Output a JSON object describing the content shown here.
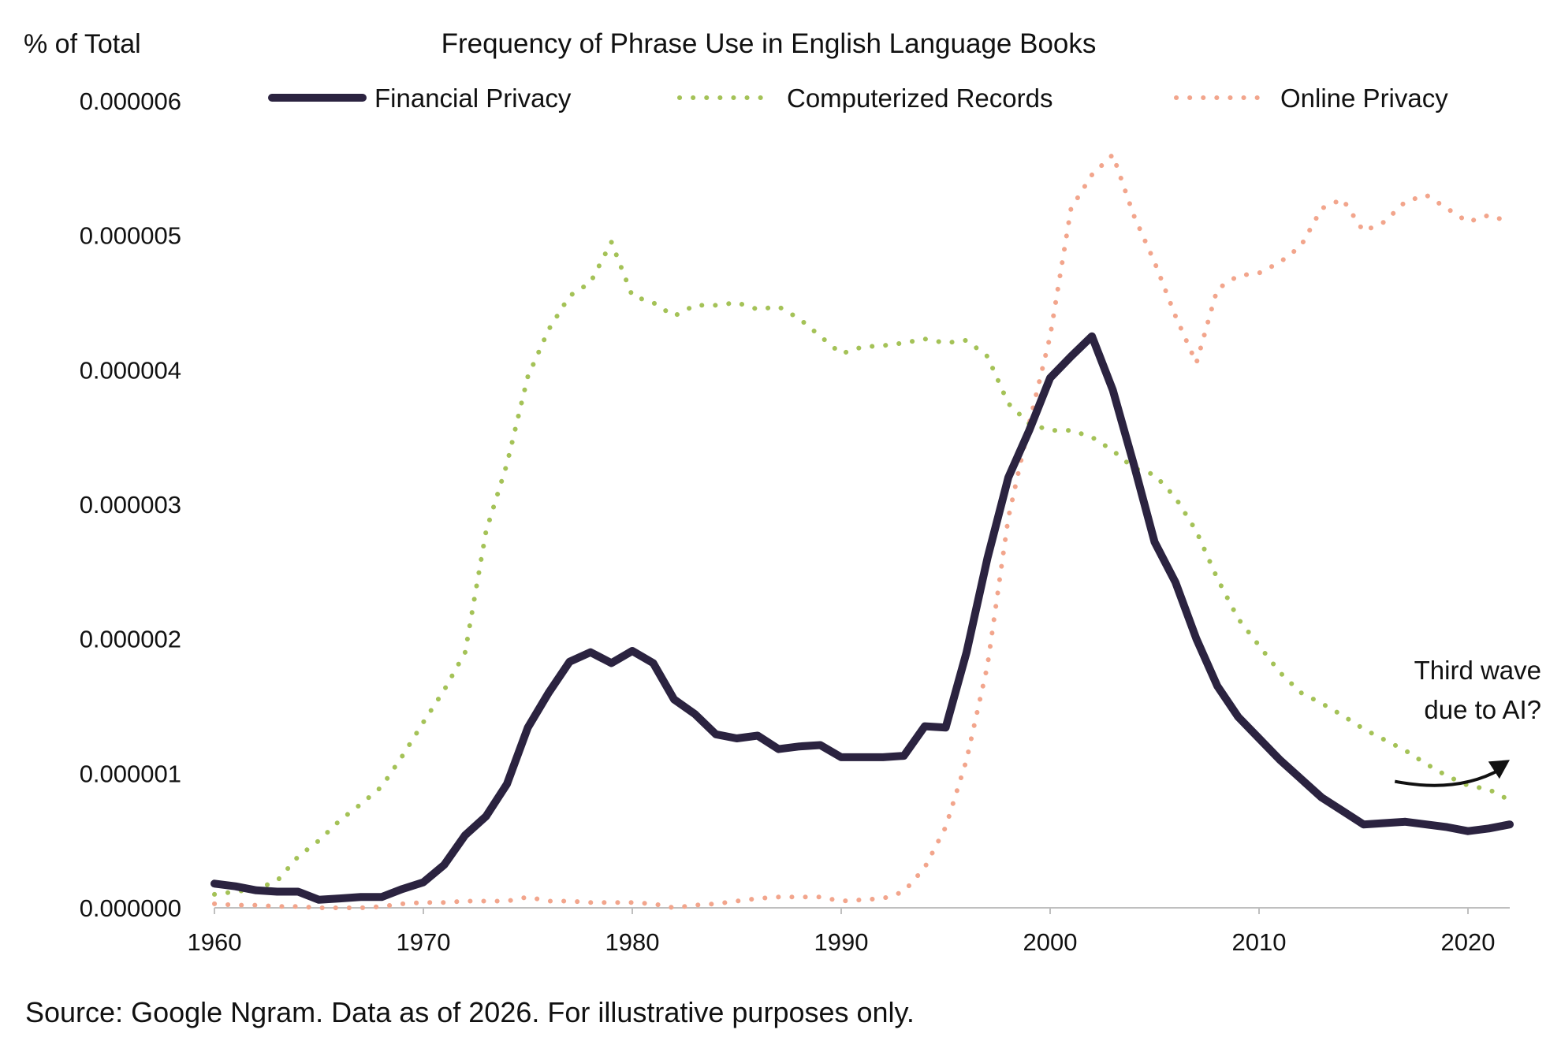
{
  "chart_data": {
    "type": "line",
    "title": "Frequency of Phrase Use in English Language Books",
    "ylabel": "% of Total",
    "xlabel": "",
    "xlim": [
      1960,
      2022
    ],
    "ylim": [
      0,
      6e-06
    ],
    "x_ticks": [
      "1960",
      "1970",
      "1980",
      "1990",
      "2000",
      "2010",
      "2020"
    ],
    "y_ticks": [
      "0.000000",
      "0.000001",
      "0.000002",
      "0.000003",
      "0.000004",
      "0.000005",
      "0.000006"
    ],
    "grid": false,
    "legend_position": "top",
    "x": [
      1960,
      1961,
      1962,
      1963,
      1964,
      1965,
      1966,
      1967,
      1968,
      1969,
      1970,
      1971,
      1972,
      1973,
      1974,
      1975,
      1976,
      1977,
      1978,
      1979,
      1980,
      1981,
      1982,
      1983,
      1984,
      1985,
      1986,
      1987,
      1988,
      1989,
      1990,
      1991,
      1992,
      1993,
      1994,
      1995,
      1996,
      1997,
      1998,
      1999,
      2000,
      2001,
      2002,
      2003,
      2004,
      2005,
      2006,
      2007,
      2008,
      2009,
      2010,
      2011,
      2012,
      2013,
      2014,
      2015,
      2016,
      2017,
      2018,
      2019,
      2020,
      2021,
      2022
    ],
    "series": [
      {
        "name": "Financial Privacy",
        "color": "#2b2340",
        "style": "solid",
        "values": [
          1.8e-07,
          1.6e-07,
          1.3e-07,
          1.2e-07,
          1.2e-07,
          6e-08,
          7e-08,
          8e-08,
          8e-08,
          1.4e-07,
          1.9e-07,
          3.2e-07,
          5.4e-07,
          6.8e-07,
          9.2e-07,
          1.34e-06,
          1.6e-06,
          1.83e-06,
          1.9e-06,
          1.82e-06,
          1.91e-06,
          1.82e-06,
          1.55e-06,
          1.44e-06,
          1.29e-06,
          1.26e-06,
          1.28e-06,
          1.18e-06,
          1.2e-06,
          1.21e-06,
          1.12e-06,
          1.12e-06,
          1.12e-06,
          1.13e-06,
          1.35e-06,
          1.34e-06,
          1.9e-06,
          2.6e-06,
          3.2e-06,
          3.55e-06,
          3.94e-06,
          4.1e-06,
          4.25e-06,
          3.85e-06,
          3.3e-06,
          2.72e-06,
          2.42e-06,
          2e-06,
          1.65e-06,
          1.42e-06,
          1.26e-06,
          1.1e-06,
          9.6e-07,
          8.2e-07,
          7.2e-07,
          6.2e-07,
          6.3e-07,
          6.4e-07,
          6.2e-07,
          6e-07,
          5.7e-07,
          5.9e-07,
          6.2e-07
        ]
      },
      {
        "name": "Computerized Records",
        "color": "#a4c257",
        "style": "dotted",
        "values": [
          1e-07,
          1.2e-07,
          1.4e-07,
          2e-07,
          3.8e-07,
          5e-07,
          6.5e-07,
          7.7e-07,
          9e-07,
          1.13e-06,
          1.38e-06,
          1.62e-06,
          1.9e-06,
          2.8e-06,
          3.3e-06,
          3.95e-06,
          4.3e-06,
          4.55e-06,
          4.65e-06,
          4.95e-06,
          4.55e-06,
          4.5e-06,
          4.4e-06,
          4.48e-06,
          4.48e-06,
          4.5e-06,
          4.45e-06,
          4.47e-06,
          4.38e-06,
          4.25e-06,
          4.12e-06,
          4.17e-06,
          4.18e-06,
          4.2e-06,
          4.23e-06,
          4.2e-06,
          4.22e-06,
          4.1e-06,
          3.75e-06,
          3.6e-06,
          3.55e-06,
          3.55e-06,
          3.5e-06,
          3.4e-06,
          3.27e-06,
          3.22e-06,
          3.05e-06,
          2.8e-06,
          2.45e-06,
          2.15e-06,
          1.95e-06,
          1.75e-06,
          1.6e-06,
          1.52e-06,
          1.43e-06,
          1.33e-06,
          1.25e-06,
          1.17e-06,
          1.07e-06,
          9.8e-07,
          9.1e-07,
          8.8e-07,
          8e-07
        ]
      },
      {
        "name": "Online Privacy",
        "color": "#f2a58c",
        "style": "dotted",
        "values": [
          3e-08,
          2e-08,
          2e-08,
          1e-08,
          1e-08,
          0,
          0,
          0,
          1e-08,
          3e-08,
          4e-08,
          4e-08,
          5e-08,
          5e-08,
          5e-08,
          8e-08,
          5e-08,
          5e-08,
          4e-08,
          4e-08,
          4e-08,
          3e-08,
          0,
          2e-08,
          3e-08,
          5e-08,
          7e-08,
          8e-08,
          8e-08,
          8e-08,
          5e-08,
          6e-08,
          7e-08,
          1.2e-07,
          3e-07,
          6e-07,
          1.1e-06,
          1.8e-06,
          2.9e-06,
          3.6e-06,
          4.25e-06,
          5.2e-06,
          5.45e-06,
          5.6e-06,
          5.15e-06,
          4.8e-06,
          4.4e-06,
          4.05e-06,
          4.6e-06,
          4.7e-06,
          4.72e-06,
          4.8e-06,
          4.92e-06,
          5.2e-06,
          5.27e-06,
          5.03e-06,
          5.1e-06,
          5.25e-06,
          5.3e-06,
          5.2e-06,
          5.1e-06,
          5.15e-06,
          5.1e-06
        ]
      }
    ],
    "annotation": {
      "lines": [
        "Third wave",
        "due to AI?"
      ],
      "arrow_from": [
        2016.5,
        9.4e-07
      ],
      "arrow_via": [
        2019.5,
        8.5e-07
      ],
      "arrow_to": [
        2022,
        1.1e-06
      ]
    },
    "axis_color": "#bfbfbf",
    "source": "Source: Google Ngram. Data as of 2026. For illustrative purposes only."
  }
}
